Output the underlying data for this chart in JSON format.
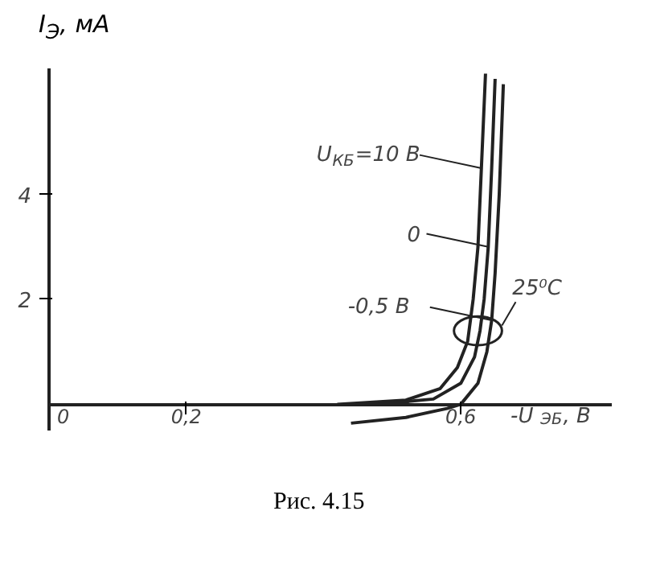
{
  "chart_data": {
    "type": "line",
    "xlabel": "-U$_{ЭБ}$, В",
    "ylabel": "I$_{Э}$, мА",
    "xlim": [
      0,
      0.82
    ],
    "ylim": [
      -0.5,
      6.4
    ],
    "xticks": [
      0,
      {
        "value": 0.2,
        "label": "0,2"
      },
      {
        "value": 0.6,
        "label": "0,6"
      }
    ],
    "yticks": [
      2,
      4
    ],
    "grid": false,
    "legend": "top right",
    "marker": "none",
    "line_style": "solid",
    "series": [
      {
        "name": "U$_{КБ}$=10 В",
        "color": "#222222",
        "x": [
          0.42,
          0.52,
          0.57,
          0.595,
          0.61,
          0.618,
          0.625,
          0.63,
          0.636
        ],
        "values": [
          0,
          0.08,
          0.3,
          0.7,
          1.2,
          2,
          3,
          4.5,
          6.3
        ]
      },
      {
        "name": "0",
        "color": "#222222",
        "x": [
          0.48,
          0.56,
          0.6,
          0.62,
          0.628,
          0.634,
          0.64,
          0.645,
          0.65
        ],
        "values": [
          0,
          0.1,
          0.4,
          0.9,
          1.4,
          2,
          3,
          4.5,
          6.2
        ]
      },
      {
        "name": "-0,5 В",
        "color": "#222222",
        "x": [
          0.44,
          0.52,
          0.58,
          0.6,
          0.625,
          0.638,
          0.645,
          0.65,
          0.656,
          0.662
        ],
        "values": [
          -0.36,
          -0.25,
          -0.08,
          0,
          0.4,
          1,
          1.6,
          2.5,
          4,
          6.1
        ]
      }
    ],
    "annotations": [
      {
        "text": "25⁰C",
        "x": 0.625,
        "y": 1.4
      },
      "Рис. 4.15"
    ]
  }
}
